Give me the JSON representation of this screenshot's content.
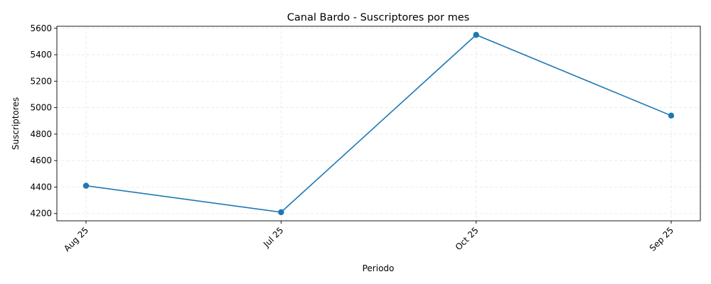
{
  "chart_data": {
    "type": "line",
    "title": "Canal Bardo - Suscriptores por mes",
    "xlabel": "Periodo",
    "ylabel": "Suscriptores",
    "categories": [
      "Aug 25",
      "Jul 25",
      "Oct 25",
      "Sep 25"
    ],
    "series": [
      {
        "values": [
          4410,
          4210,
          5550,
          4940
        ],
        "color": "#1f77b4",
        "marker": "circle"
      }
    ],
    "ylim": [
      4145,
      5615
    ],
    "yticks": [
      4200,
      4400,
      4600,
      4800,
      5000,
      5200,
      5400,
      5600
    ],
    "grid": true,
    "legend": "none"
  }
}
